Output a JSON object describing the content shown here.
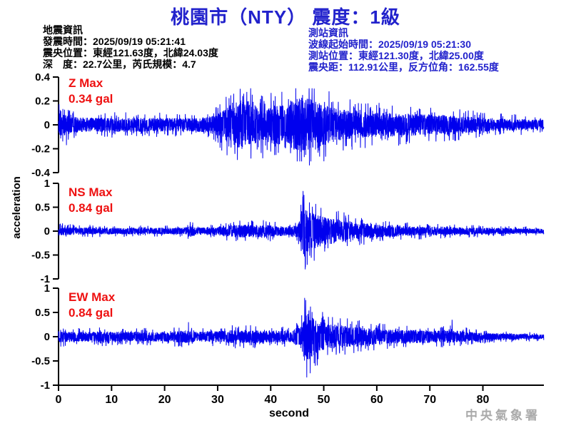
{
  "title": "桃園市（NTY） 震度：1級",
  "earthquake_info": {
    "heading": "地震資訊",
    "origin_time": "發震時間：2025/09/19 05:21:41",
    "epicenter": "震央位置：東經121.63度，北緯24.03度",
    "depth_magnitude": "深　度：22.7公里，芮氏規模：4.7"
  },
  "station_info": {
    "heading": "測站資訊",
    "wave_start_time": "波線起始時間：2025/09/19 05:21:30",
    "station_location": "測站位置：東經121.30度，北緯25.00度",
    "epicentral_distance": "震央距：112.91公里，反方位角：162.55度"
  },
  "watermark": "中央氣象署",
  "colors": {
    "title_blue": "#2222cc",
    "info_blue": "#2222cc",
    "waveform_blue": "#0000ee",
    "max_label_red": "#ee1111",
    "axis_black": "#000000",
    "watermark_gray": "#aaaaaa"
  },
  "chart_data": {
    "type": "line",
    "title": "桃園市（NTY） 震度：1級",
    "xlabel": "second",
    "ylabel": "acceleration",
    "unit": "gal",
    "xlim": [
      0,
      91.5
    ],
    "xticks": [
      0,
      10,
      20,
      30,
      40,
      50,
      60,
      70,
      80
    ],
    "traces": [
      {
        "name": "Z",
        "max_label": "Z Max",
        "max_value_label": "0.34 gal",
        "max_gal": 0.34,
        "ylim": [
          -0.4,
          0.4
        ],
        "yticks": [
          0.4,
          0.2,
          0,
          -0.2,
          -0.4
        ],
        "envelope_gal": [
          [
            0,
            0.1
          ],
          [
            2,
            0.08
          ],
          [
            4,
            0.06
          ],
          [
            10,
            0.06
          ],
          [
            24,
            0.055
          ],
          [
            28,
            0.065
          ],
          [
            30,
            0.09
          ],
          [
            32,
            0.17
          ],
          [
            34,
            0.21
          ],
          [
            36,
            0.2
          ],
          [
            38,
            0.14
          ],
          [
            40,
            0.15
          ],
          [
            42,
            0.18
          ],
          [
            44,
            0.21
          ],
          [
            46,
            0.23
          ],
          [
            48,
            0.22
          ],
          [
            50,
            0.17
          ],
          [
            53,
            0.13
          ],
          [
            57,
            0.11
          ],
          [
            62,
            0.1
          ],
          [
            68,
            0.09
          ],
          [
            74,
            0.08
          ],
          [
            80,
            0.06
          ],
          [
            85,
            0.05
          ],
          [
            91.5,
            0.045
          ]
        ],
        "peaks_gal": [
          [
            1.5,
            -0.17
          ],
          [
            34.9,
            0.26
          ],
          [
            38.5,
            -0.28
          ],
          [
            46.0,
            0.25
          ],
          [
            47.3,
            -0.34
          ]
        ]
      },
      {
        "name": "NS",
        "max_label": "NS Max",
        "max_value_label": "0.84 gal",
        "max_gal": 0.84,
        "ylim": [
          -1,
          1
        ],
        "yticks": [
          1,
          0.5,
          0,
          -0.5,
          -1
        ],
        "envelope_gal": [
          [
            0,
            0.1
          ],
          [
            2,
            0.08
          ],
          [
            8,
            0.07
          ],
          [
            20,
            0.065
          ],
          [
            24,
            0.07
          ],
          [
            25,
            0.12
          ],
          [
            26,
            0.08
          ],
          [
            29,
            0.075
          ],
          [
            31,
            0.11
          ],
          [
            33,
            0.13
          ],
          [
            35,
            0.14
          ],
          [
            37,
            0.13
          ],
          [
            39,
            0.13
          ],
          [
            41,
            0.11
          ],
          [
            43,
            0.1
          ],
          [
            45,
            0.13
          ],
          [
            45.8,
            0.3
          ],
          [
            46.3,
            0.55
          ],
          [
            47,
            0.45
          ],
          [
            48,
            0.38
          ],
          [
            49,
            0.33
          ],
          [
            51,
            0.28
          ],
          [
            53,
            0.24
          ],
          [
            55,
            0.2
          ],
          [
            58,
            0.16
          ],
          [
            61,
            0.13
          ],
          [
            65,
            0.11
          ],
          [
            70,
            0.09
          ],
          [
            75,
            0.08
          ],
          [
            80,
            0.07
          ],
          [
            85,
            0.06
          ],
          [
            91.5,
            0.05
          ]
        ],
        "peaks_gal": [
          [
            25.3,
            0.18
          ],
          [
            45.7,
            0.55
          ],
          [
            46.1,
            0.84
          ],
          [
            46.5,
            -0.8
          ],
          [
            47.3,
            0.6
          ],
          [
            48.2,
            -0.62
          ]
        ]
      },
      {
        "name": "EW",
        "max_label": "EW Max",
        "max_value_label": "0.84 gal",
        "max_gal": 0.84,
        "ylim": [
          -1,
          1
        ],
        "yticks": [
          1,
          0.5,
          0,
          -0.5,
          -1
        ],
        "envelope_gal": [
          [
            0,
            0.12
          ],
          [
            3,
            0.1
          ],
          [
            8,
            0.11
          ],
          [
            14,
            0.1
          ],
          [
            20,
            0.1
          ],
          [
            24,
            0.13
          ],
          [
            26,
            0.1
          ],
          [
            29,
            0.11
          ],
          [
            32,
            0.13
          ],
          [
            35,
            0.14
          ],
          [
            38,
            0.13
          ],
          [
            41,
            0.12
          ],
          [
            44,
            0.12
          ],
          [
            45.8,
            0.25
          ],
          [
            46.5,
            0.55
          ],
          [
            47.5,
            0.45
          ],
          [
            48.5,
            0.35
          ],
          [
            50,
            0.3
          ],
          [
            52,
            0.25
          ],
          [
            55,
            0.21
          ],
          [
            58,
            0.18
          ],
          [
            62,
            0.15
          ],
          [
            66,
            0.14
          ],
          [
            70,
            0.13
          ],
          [
            74,
            0.13
          ],
          [
            78,
            0.1
          ],
          [
            82,
            0.07
          ],
          [
            86,
            0.06
          ],
          [
            91.5,
            0.05
          ]
        ],
        "peaks_gal": [
          [
            24.5,
            0.3
          ],
          [
            46.4,
            0.8
          ],
          [
            46.8,
            -0.84
          ],
          [
            47.5,
            0.62
          ],
          [
            48.4,
            -0.6
          ],
          [
            74.2,
            0.35
          ]
        ]
      }
    ]
  }
}
